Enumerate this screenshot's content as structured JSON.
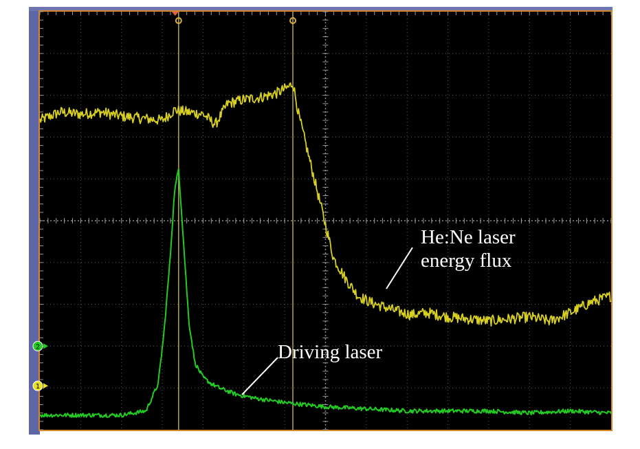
{
  "chart_data": {
    "type": "line",
    "title": "",
    "xlabel": "",
    "ylabel": "",
    "grid": true,
    "divisions": {
      "x": 14,
      "y": 10
    },
    "xlim": [
      0,
      14
    ],
    "ylim": [
      -5,
      5
    ],
    "cursors_x": [
      3.4,
      6.2
    ],
    "series": [
      {
        "name": "He:Ne laser energy flux",
        "color": "#d8d020",
        "x": [
          0,
          0.5,
          1,
          1.5,
          2,
          2.5,
          3,
          3.3,
          3.6,
          4,
          4.3,
          4.6,
          5,
          5.4,
          5.8,
          6.1,
          6.2,
          6.35,
          6.6,
          6.9,
          7.2,
          7.5,
          7.8,
          8.1,
          8.4,
          8.7,
          9.1,
          9.5,
          10,
          10.5,
          11,
          11.5,
          12,
          12.5,
          13,
          13.5,
          14
        ],
        "values": [
          2.4,
          2.6,
          2.55,
          2.6,
          2.5,
          2.45,
          2.4,
          2.65,
          2.6,
          2.55,
          2.3,
          2.8,
          2.9,
          2.95,
          3.05,
          3.2,
          3.3,
          2.5,
          1.5,
          0.3,
          -0.9,
          -1.4,
          -1.8,
          -1.95,
          -2.05,
          -2.15,
          -2.25,
          -2.2,
          -2.3,
          -2.35,
          -2.4,
          -2.35,
          -2.3,
          -2.4,
          -2.2,
          -1.95,
          -1.8
        ]
      },
      {
        "name": "Driving laser",
        "color": "#22cc22",
        "x": [
          0,
          1,
          2,
          2.6,
          2.9,
          3.05,
          3.2,
          3.3,
          3.4,
          3.5,
          3.65,
          3.8,
          4,
          4.2,
          4.4,
          4.8,
          5.3,
          6,
          7,
          8,
          9,
          10,
          11,
          12,
          13,
          14
        ],
        "values": [
          -4.65,
          -4.65,
          -4.65,
          -4.55,
          -3.9,
          -2.6,
          -0.8,
          0.7,
          1.25,
          -0.2,
          -2.4,
          -3.4,
          -3.75,
          -3.9,
          -4.0,
          -4.15,
          -4.25,
          -4.35,
          -4.45,
          -4.5,
          -4.55,
          -4.55,
          -4.55,
          -4.6,
          -4.55,
          -4.6
        ]
      }
    ],
    "annotations": [
      {
        "text": "He:Ne laser",
        "target_series": 0
      },
      {
        "text": "energy flux",
        "target_series": 0
      },
      {
        "text": "Driving laser",
        "target_series": 1
      }
    ],
    "channel_markers": [
      {
        "channel": 2,
        "color": "#22cc22",
        "level": -3.0
      },
      {
        "channel": 1,
        "color": "#e8e020",
        "level": -3.95
      }
    ]
  }
}
